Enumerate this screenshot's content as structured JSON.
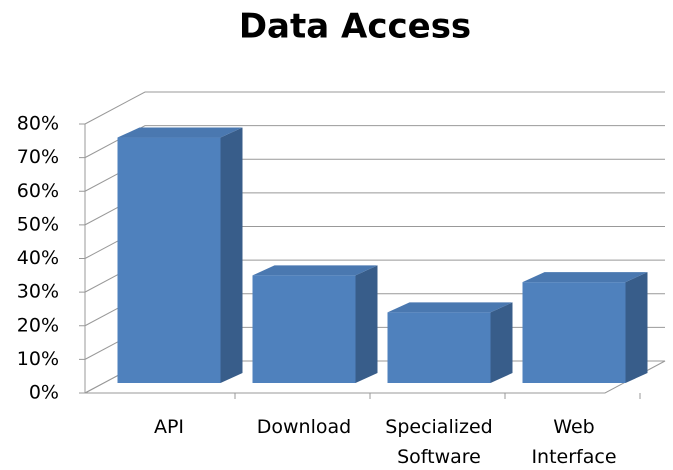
{
  "chart_data": {
    "type": "bar3d",
    "title": "Data Access",
    "categories": [
      "API",
      "Download",
      "Specialized Software",
      "Web Interface"
    ],
    "values": [
      73,
      32,
      21,
      30
    ],
    "color": "#4f81bd",
    "ylim": [
      0,
      80
    ],
    "yticks": [
      {
        "value": 0,
        "label": "0%"
      },
      {
        "value": 10,
        "label": "10%"
      },
      {
        "value": 20,
        "label": "20%"
      },
      {
        "value": 30,
        "label": "30%"
      },
      {
        "value": 40,
        "label": "40%"
      },
      {
        "value": 50,
        "label": "50%"
      },
      {
        "value": 60,
        "label": "60%"
      },
      {
        "value": 70,
        "label": "70%"
      },
      {
        "value": 80,
        "label": "80%"
      }
    ],
    "grid": true
  }
}
